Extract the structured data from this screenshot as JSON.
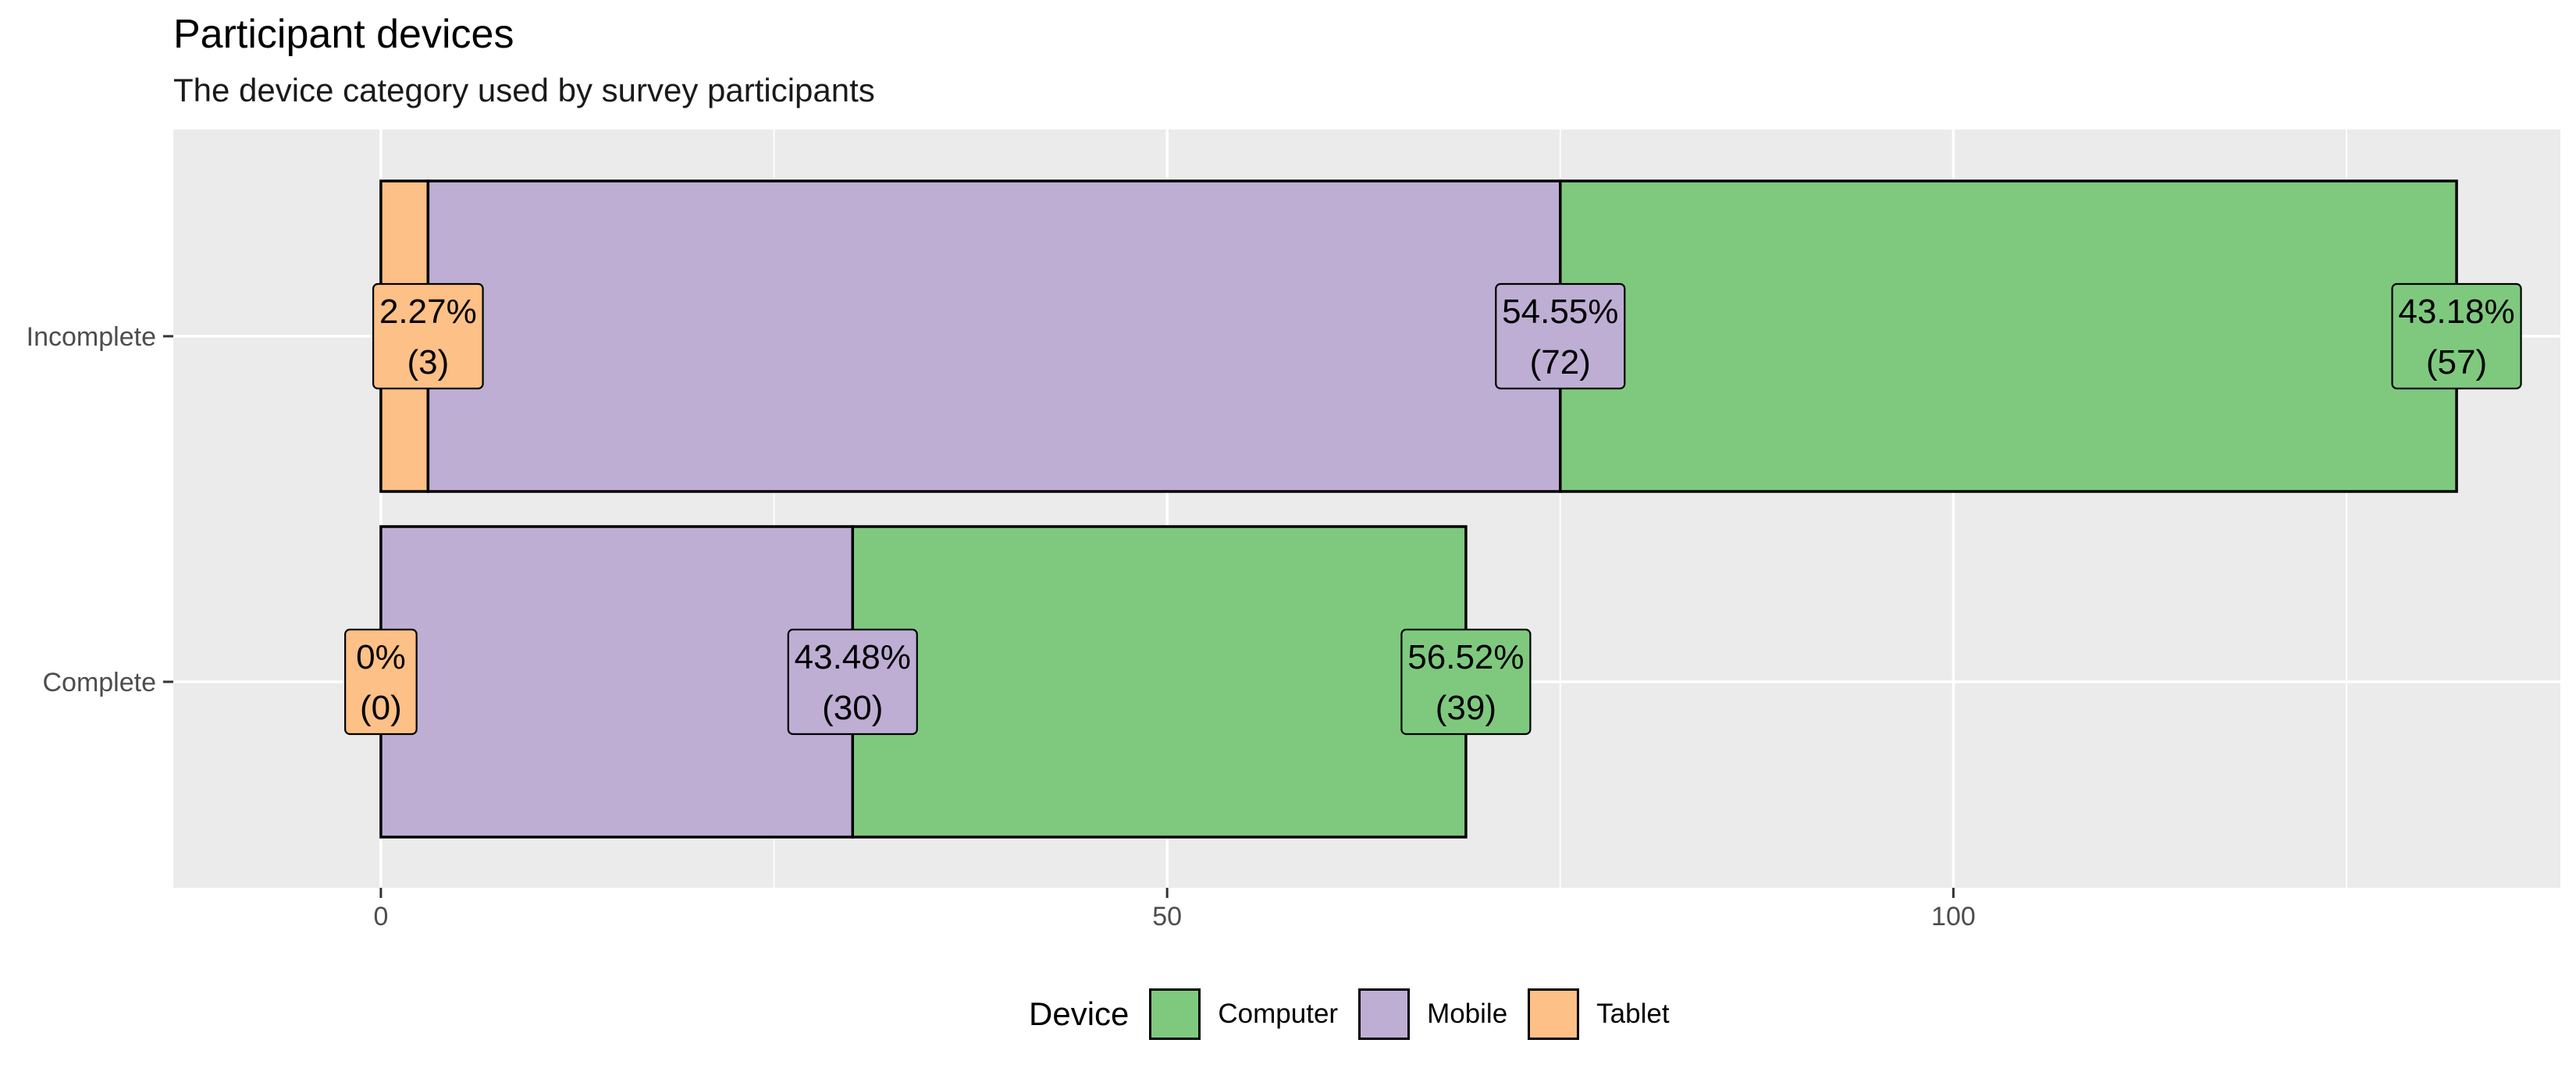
{
  "chart_data": {
    "type": "bar",
    "orientation": "horizontal",
    "stacked": true,
    "title": "Participant devices",
    "subtitle": "The device category used by survey participants",
    "xlabel": "",
    "ylabel": "",
    "xlim": [
      -13.2,
      138.6
    ],
    "x_ticks": [
      0,
      50,
      100
    ],
    "x_minor_ticks": [
      25,
      75,
      125
    ],
    "categories": [
      "Incomplete",
      "Complete"
    ],
    "stack_order": [
      "Tablet",
      "Mobile",
      "Computer"
    ],
    "series": [
      {
        "name": "Computer",
        "color": "#7fc97f",
        "values": [
          57,
          39
        ],
        "percent_labels": [
          "43.18%",
          "56.52%"
        ],
        "count_labels": [
          "(57)",
          "(39)"
        ]
      },
      {
        "name": "Mobile",
        "color": "#beaed4",
        "values": [
          72,
          30
        ],
        "percent_labels": [
          "54.55%",
          "43.48%"
        ],
        "count_labels": [
          "(72)",
          "(30)"
        ]
      },
      {
        "name": "Tablet",
        "color": "#fdc086",
        "values": [
          3,
          0
        ],
        "percent_labels": [
          "2.27%",
          "0%"
        ],
        "count_labels": [
          "(3)",
          "(0)"
        ]
      }
    ],
    "grid": true,
    "panel_background": "#ebebeb",
    "grid_color": "#ffffff",
    "legend": {
      "title": "Device",
      "position": "bottom",
      "order": [
        "Computer",
        "Mobile",
        "Tablet"
      ]
    }
  }
}
